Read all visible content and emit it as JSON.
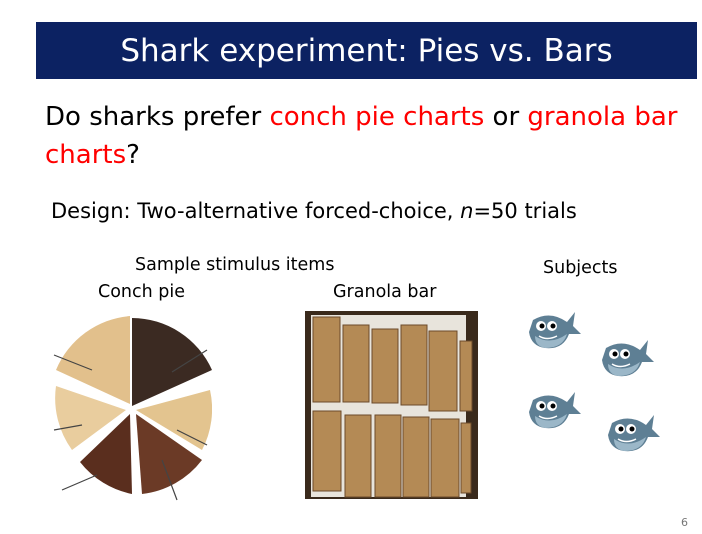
{
  "title": "Shark experiment: Pies vs. Bars",
  "question": {
    "pre": "Do sharks prefer ",
    "pie": "conch pie charts",
    "mid": " or ",
    "bar": "granola bar charts",
    "post": "?"
  },
  "design": {
    "prefix": "Design: Two-alternative forced-choice,  ",
    "n_var": "n",
    "suffix": "=50 trials"
  },
  "labels": {
    "sample": "Sample stimulus items",
    "conch": "Conch pie",
    "granola": "Granola bar",
    "subjects": "Subjects"
  },
  "page_number": "6",
  "colors": {
    "title_bg": "#0c2262",
    "highlight": "#ff0000",
    "shark": "#5e7f94"
  }
}
